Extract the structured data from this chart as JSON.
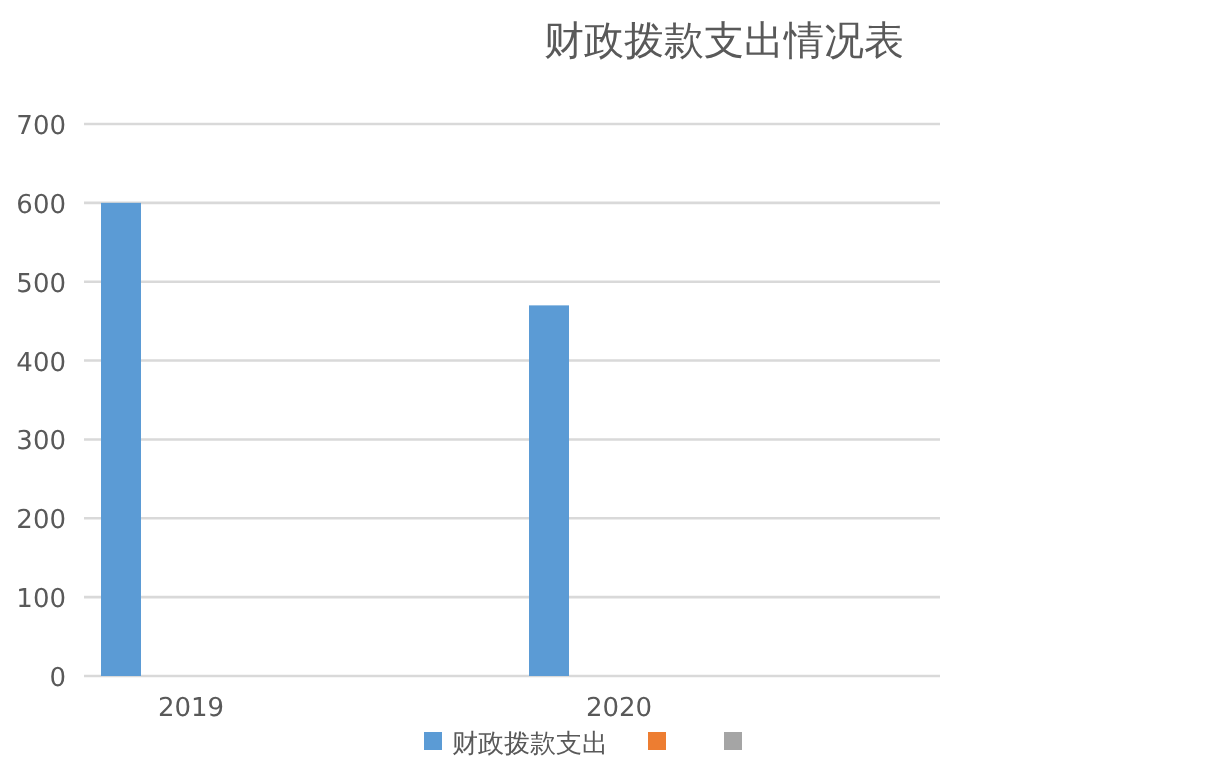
{
  "chart_data": {
    "type": "bar",
    "title": "财政拨款支出情况表",
    "categories": [
      "2019",
      "2020"
    ],
    "series": [
      {
        "name": "财政拨款支出",
        "color": "#5b9bd5",
        "values": [
          600,
          470
        ]
      },
      {
        "color": "#ed7d31",
        "values": [
          null,
          null
        ]
      },
      {
        "color": "#a5a5a5",
        "values": [
          null,
          null
        ]
      }
    ],
    "ylim": [
      0,
      700
    ],
    "yticks": [
      0,
      100,
      200,
      300,
      400,
      500,
      600,
      700
    ],
    "grid": true,
    "legend": "bottom"
  }
}
